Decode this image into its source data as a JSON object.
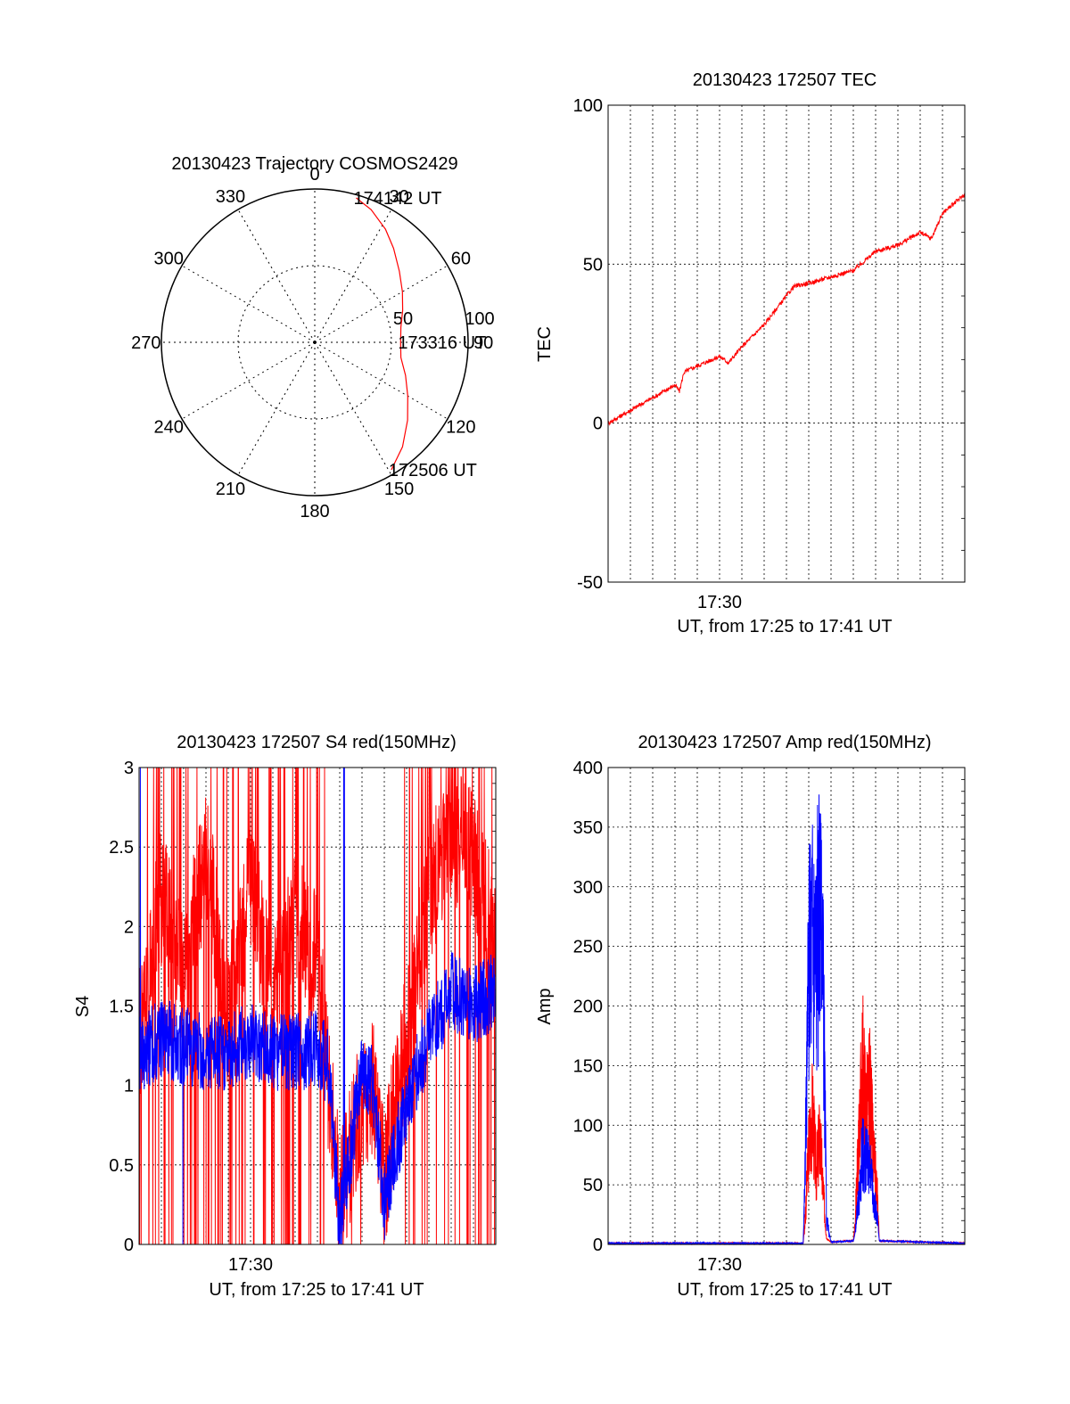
{
  "colors": {
    "red_series": "#ff0000",
    "blue_series": "#0000ff",
    "grid": "#000000",
    "background": "#ffffff"
  },
  "chart_data": [
    {
      "id": "trajectory",
      "type": "polar",
      "title": "20130423 Trajectory COSMOS2429",
      "azimuth_labels": [
        "0",
        "30",
        "60",
        "90",
        "120",
        "150",
        "180",
        "210",
        "240",
        "270",
        "300",
        "330"
      ],
      "radial_labels": [
        "50",
        "100"
      ],
      "radial_values": [
        50,
        100
      ],
      "r_max": 100,
      "grid": true,
      "track": {
        "color": "#ff0000",
        "points": [
          {
            "az": 149,
            "r": 97
          },
          {
            "az": 140,
            "r": 89
          },
          {
            "az": 130,
            "r": 79
          },
          {
            "az": 120,
            "r": 70
          },
          {
            "az": 110,
            "r": 63
          },
          {
            "az": 100,
            "r": 57
          },
          {
            "az": 90,
            "r": 56
          },
          {
            "az": 80,
            "r": 57
          },
          {
            "az": 70,
            "r": 61
          },
          {
            "az": 60,
            "r": 66
          },
          {
            "az": 50,
            "r": 72
          },
          {
            "az": 40,
            "r": 80
          },
          {
            "az": 32,
            "r": 87
          },
          {
            "az": 23,
            "r": 94
          },
          {
            "az": 16,
            "r": 98
          }
        ]
      },
      "annotations": [
        {
          "text": "172506 UT",
          "az": 149,
          "r": 97
        },
        {
          "text": "173316 UT",
          "az": 90,
          "r": 56
        },
        {
          "text": "174142 UT",
          "az": 16,
          "r": 98
        }
      ]
    },
    {
      "id": "tec",
      "type": "line",
      "title": "20130423 172507 TEC",
      "xlabel": "UT, from 17:25 to 17:41 UT",
      "ylabel": "TEC",
      "xlim": [
        "17:25",
        "17:41"
      ],
      "ylim": [
        -50,
        100
      ],
      "yticks": [
        "-50",
        "0",
        "50",
        "100"
      ],
      "xtick_labels": [
        {
          "t": "17:30",
          "label": "17:30"
        }
      ],
      "grid": true,
      "series": [
        {
          "color": "#ff0000",
          "x": [
            "17:25:00",
            "17:26:00",
            "17:27:00",
            "17:28:00",
            "17:28:12",
            "17:28:24",
            "17:29:00",
            "17:30:00",
            "17:30:24",
            "17:31:00",
            "17:32:00",
            "17:33:00",
            "17:33:20",
            "17:34:00",
            "17:35:00",
            "17:36:00",
            "17:37:00",
            "17:38:00",
            "17:39:00",
            "17:39:30",
            "17:40:00",
            "17:40:30",
            "17:41:00"
          ],
          "y": [
            0,
            4,
            8,
            12,
            10,
            16,
            18,
            21,
            19,
            24,
            31,
            40,
            43,
            44,
            46,
            48,
            54,
            56,
            60,
            58,
            66,
            69,
            72
          ]
        }
      ]
    },
    {
      "id": "s4",
      "type": "line",
      "title": "20130423 172507 S4 red(150MHz)",
      "xlabel": "UT, from 17:25 to 17:41 UT",
      "ylabel": "S4",
      "xlim": [
        "17:25",
        "17:41"
      ],
      "ylim": [
        0,
        3
      ],
      "yticks": [
        "0",
        "0.5",
        "1",
        "1.5",
        "2",
        "2.5",
        "3"
      ],
      "xtick_labels": [
        {
          "t": "17:30",
          "label": "17:30"
        }
      ],
      "grid": true,
      "series": [
        {
          "color": "#ff0000",
          "x": [
            "17:25:00",
            "17:26:00",
            "17:27:00",
            "17:28:00",
            "17:29:00",
            "17:30:00",
            "17:31:00",
            "17:32:00",
            "17:33:00",
            "17:33:30",
            "17:34:00",
            "17:35:00",
            "17:35:30",
            "17:36:00",
            "17:37:00",
            "17:38:00",
            "17:39:00",
            "17:40:00",
            "17:41:00"
          ],
          "y": [
            1.3,
            2.2,
            1.6,
            2.5,
            1.4,
            2.3,
            1.5,
            2.1,
            1.8,
            1.0,
            0.25,
            0.9,
            1.0,
            0.4,
            1.3,
            2.2,
            2.6,
            2.4,
            1.9
          ]
        },
        {
          "color": "#0000ff",
          "x": [
            "17:25:00",
            "17:26:00",
            "17:27:00",
            "17:28:00",
            "17:29:00",
            "17:30:00",
            "17:31:00",
            "17:32:00",
            "17:33:00",
            "17:33:30",
            "17:34:00",
            "17:35:00",
            "17:35:30",
            "17:36:00",
            "17:37:00",
            "17:38:00",
            "17:39:00",
            "17:40:00",
            "17:41:00"
          ],
          "y": [
            1.2,
            1.3,
            1.25,
            1.2,
            1.2,
            1.3,
            1.2,
            1.2,
            1.25,
            1.1,
            0.12,
            1.1,
            1.0,
            0.25,
            0.9,
            1.3,
            1.6,
            1.5,
            1.6
          ]
        }
      ]
    },
    {
      "id": "amp",
      "type": "line",
      "title": "20130423 172507 Amp red(150MHz)",
      "xlabel": "UT, from 17:25 to 17:41 UT",
      "ylabel": "Amp",
      "xlim": [
        "17:25",
        "17:41"
      ],
      "ylim": [
        0,
        400
      ],
      "yticks": [
        "0",
        "50",
        "100",
        "150",
        "200",
        "250",
        "300",
        "350",
        "400"
      ],
      "xtick_labels": [
        {
          "t": "17:30",
          "label": "17:30"
        }
      ],
      "grid": true,
      "series": [
        {
          "color": "#ff0000",
          "x": [
            "17:25:00",
            "17:33:45",
            "17:33:50",
            "17:34:00",
            "17:34:10",
            "17:34:20",
            "17:34:30",
            "17:34:40",
            "17:34:48",
            "17:35:00",
            "17:36:00",
            "17:36:05",
            "17:36:15",
            "17:36:25",
            "17:36:35",
            "17:36:45",
            "17:36:55",
            "17:37:05",
            "17:37:10",
            "17:41:00"
          ],
          "y": [
            1,
            1,
            20,
            80,
            110,
            60,
            90,
            40,
            5,
            2,
            3,
            20,
            90,
            150,
            110,
            130,
            70,
            40,
            3,
            1
          ]
        },
        {
          "color": "#0000ff",
          "x": [
            "17:25:00",
            "17:33:45",
            "17:33:50",
            "17:34:00",
            "17:34:10",
            "17:34:20",
            "17:34:30",
            "17:34:40",
            "17:34:48",
            "17:35:00",
            "17:36:00",
            "17:36:05",
            "17:36:15",
            "17:36:25",
            "17:36:35",
            "17:36:45",
            "17:36:55",
            "17:37:05",
            "17:37:10",
            "17:41:00"
          ],
          "y": [
            1,
            1,
            60,
            230,
            275,
            250,
            270,
            200,
            20,
            2,
            3,
            10,
            40,
            80,
            70,
            60,
            40,
            20,
            3,
            1
          ]
        }
      ]
    }
  ]
}
